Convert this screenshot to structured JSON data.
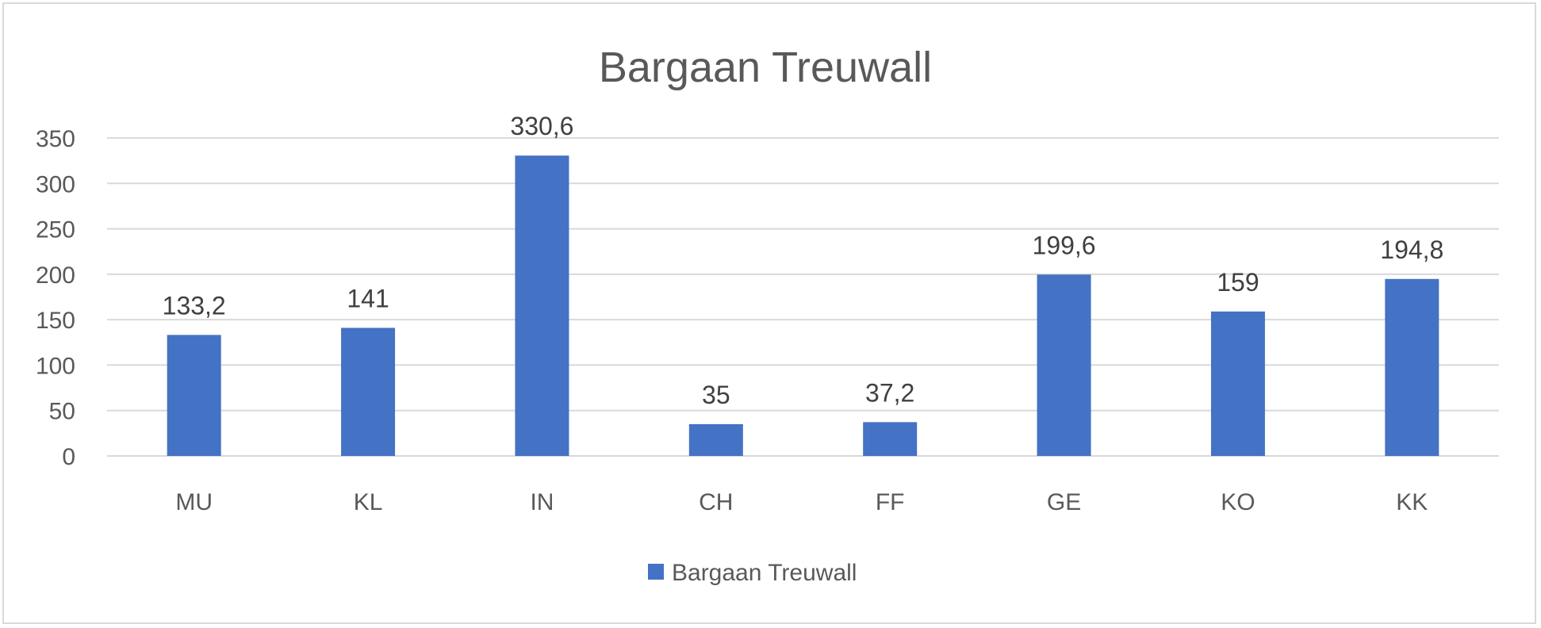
{
  "chart_data": {
    "type": "bar",
    "title": "Bargaan Treuwall",
    "xlabel": "",
    "ylabel": "",
    "categories": [
      "MU",
      "KL",
      "IN",
      "CH",
      "FF",
      "GE",
      "KO",
      "KK"
    ],
    "series": [
      {
        "name": "Bargaan Treuwall",
        "color": "#4472c4",
        "values": [
          133.2,
          141,
          330.6,
          35,
          37.2,
          199.6,
          159,
          194.8
        ],
        "labels": [
          "133,2",
          "141",
          "330,6",
          "35",
          "37,2",
          "199,6",
          "159",
          "194,8"
        ]
      }
    ],
    "ylim": [
      0,
      350
    ],
    "yticks": [
      0,
      50,
      100,
      150,
      200,
      250,
      300,
      350
    ],
    "grid": true,
    "legend_position": "bottom"
  }
}
